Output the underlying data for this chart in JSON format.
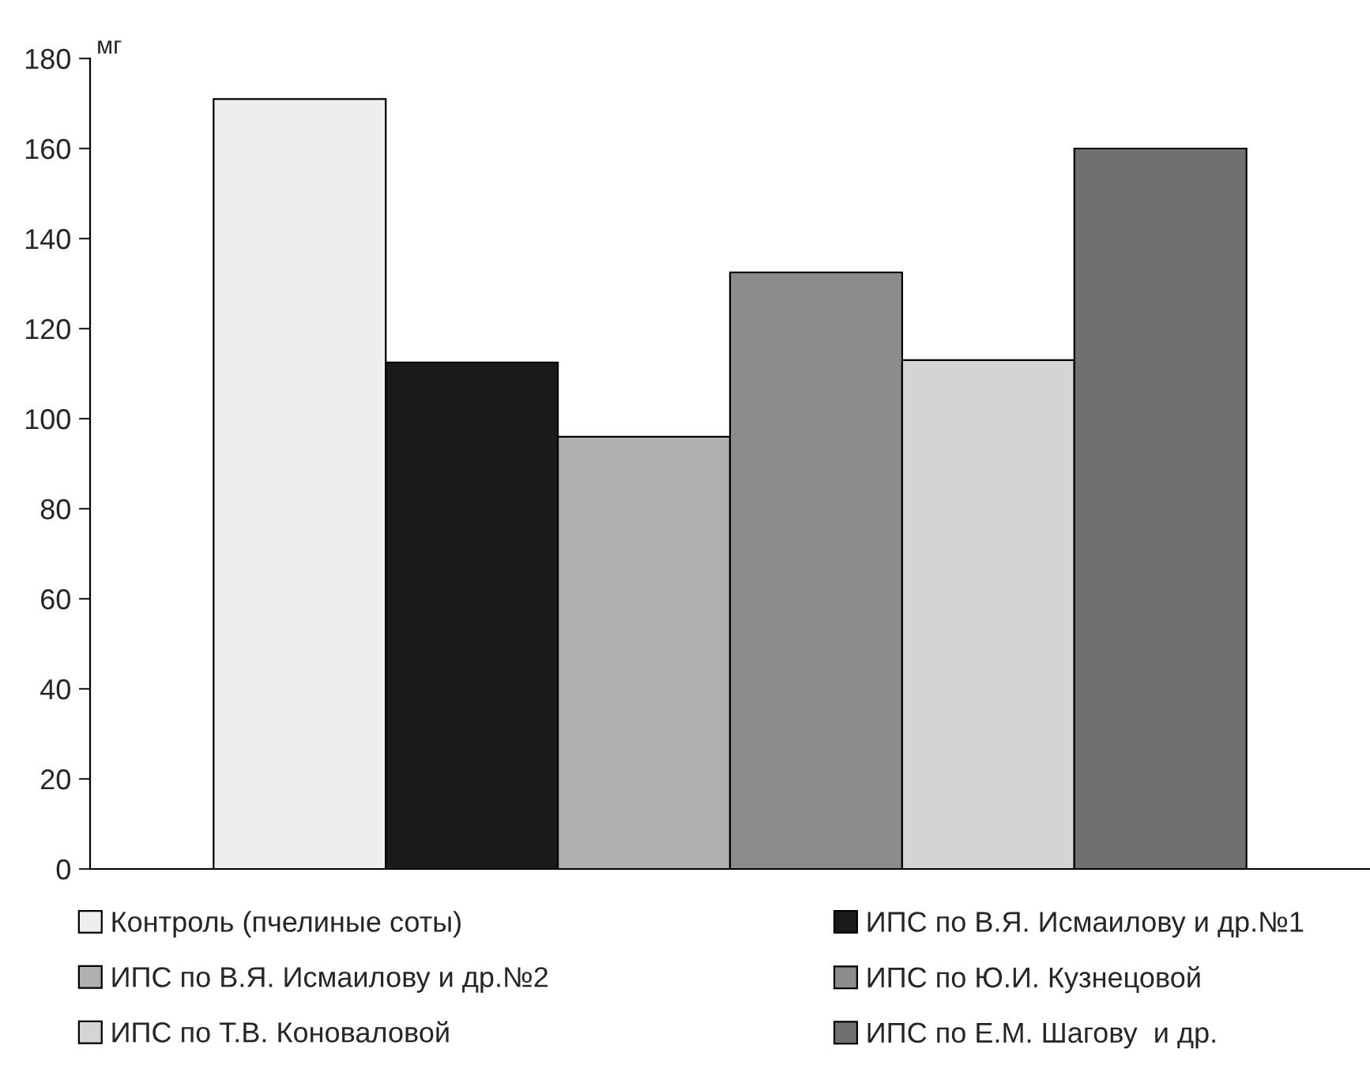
{
  "chart_data": {
    "type": "bar",
    "ylabel": "мг",
    "categories": [
      null
    ],
    "series": [
      {
        "name": "Контроль (пчелиные соты)",
        "color": "#eeeeee",
        "values": [
          171
        ]
      },
      {
        "name": "ИПС по В.Я. Исмаилову и др.№1",
        "color": "#1a1a1a",
        "values": [
          112.5
        ]
      },
      {
        "name": "ИПС по В.Я. Исмаилову и др.№2",
        "color": "#b0b0b0",
        "values": [
          96
        ]
      },
      {
        "name": "ИПС по Ю.И. Кузнецовой",
        "color": "#8c8c8c",
        "values": [
          132.5
        ]
      },
      {
        "name": "ИПС по Т.В. Коноваловой",
        "color": "#d4d4d4",
        "values": [
          113
        ]
      },
      {
        "name": "ИПС по Е.М. Шагову  и др.",
        "color": "#707070",
        "values": [
          160
        ]
      }
    ],
    "ylim": [
      0,
      180
    ],
    "yticks": [
      0,
      20,
      40,
      60,
      80,
      100,
      120,
      140,
      160,
      180
    ],
    "grid": false,
    "legend": "bottom"
  }
}
